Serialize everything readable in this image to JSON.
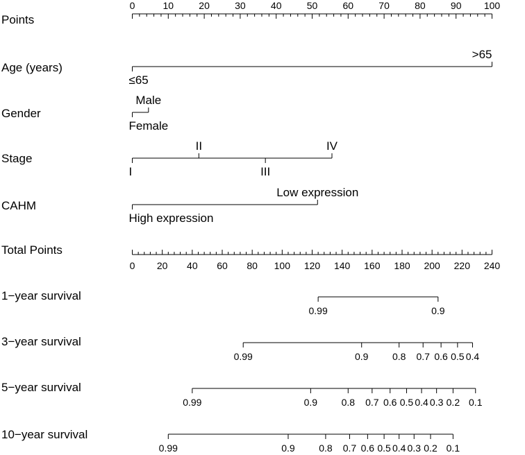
{
  "chart_data": {
    "type": "nomogram",
    "title": "",
    "points_axis": {
      "label": "Points",
      "range": [
        0,
        100
      ],
      "major_ticks": [
        0,
        10,
        20,
        30,
        40,
        50,
        60,
        70,
        80,
        90,
        100
      ],
      "minor_step": 2
    },
    "predictors": [
      {
        "name": "Age (years)",
        "levels": [
          {
            "label": "≤65",
            "points": 0,
            "side": "below"
          },
          {
            "label": ">65",
            "points": 100,
            "side": "above"
          }
        ]
      },
      {
        "name": "Gender",
        "levels": [
          {
            "label": "Female",
            "points": 0,
            "side": "below"
          },
          {
            "label": "Male",
            "points": 4.5,
            "side": "above"
          }
        ]
      },
      {
        "name": "Stage",
        "levels": [
          {
            "label": "I",
            "points": 0,
            "side": "below"
          },
          {
            "label": "II",
            "points": 18.5,
            "side": "above"
          },
          {
            "label": "III",
            "points": 37,
            "side": "below"
          },
          {
            "label": "IV",
            "points": 55.5,
            "side": "above"
          }
        ]
      },
      {
        "name": "CAHM",
        "levels": [
          {
            "label": "High expression",
            "points": 0,
            "side": "below"
          },
          {
            "label": "Low expression",
            "points": 51.5,
            "side": "above"
          }
        ]
      }
    ],
    "total_points_axis": {
      "label": "Total Points",
      "range": [
        0,
        240
      ],
      "major_ticks": [
        0,
        20,
        40,
        60,
        80,
        100,
        120,
        140,
        160,
        180,
        200,
        220,
        240
      ],
      "minor_step": 4
    },
    "survival_axes": [
      {
        "label": "1−year survival",
        "ticks": [
          {
            "label": "0.99",
            "total_points": 124
          },
          {
            "label": "0.9",
            "total_points": 204
          }
        ]
      },
      {
        "label": "3−year survival",
        "ticks": [
          {
            "label": "0.99",
            "total_points": 74
          },
          {
            "label": "0.9",
            "total_points": 153
          },
          {
            "label": "0.8",
            "total_points": 178
          },
          {
            "label": "0.7",
            "total_points": 194
          },
          {
            "label": "0.6",
            "total_points": 206
          },
          {
            "label": "0.5",
            "total_points": 217
          },
          {
            "label": "0.4",
            "total_points": 227
          }
        ]
      },
      {
        "label": "5−year survival",
        "ticks": [
          {
            "label": "0.99",
            "total_points": 40
          },
          {
            "label": "0.9",
            "total_points": 119
          },
          {
            "label": "0.8",
            "total_points": 144
          },
          {
            "label": "0.7",
            "total_points": 160
          },
          {
            "label": "0.6",
            "total_points": 172
          },
          {
            "label": "0.5",
            "total_points": 183
          },
          {
            "label": "0.4",
            "total_points": 193
          },
          {
            "label": "0.3",
            "total_points": 203
          },
          {
            "label": "0.2",
            "total_points": 214
          },
          {
            "label": "0.1",
            "total_points": 229
          }
        ]
      },
      {
        "label": "10−year survival",
        "ticks": [
          {
            "label": "0.99",
            "total_points": 24
          },
          {
            "label": "0.9",
            "total_points": 104
          },
          {
            "label": "0.8",
            "total_points": 129
          },
          {
            "label": "0.7",
            "total_points": 145
          },
          {
            "label": "0.6",
            "total_points": 157
          },
          {
            "label": "0.5",
            "total_points": 168
          },
          {
            "label": "0.4",
            "total_points": 178
          },
          {
            "label": "0.3",
            "total_points": 188
          },
          {
            "label": "0.2",
            "total_points": 199
          },
          {
            "label": "0.1",
            "total_points": 214
          }
        ]
      }
    ]
  }
}
